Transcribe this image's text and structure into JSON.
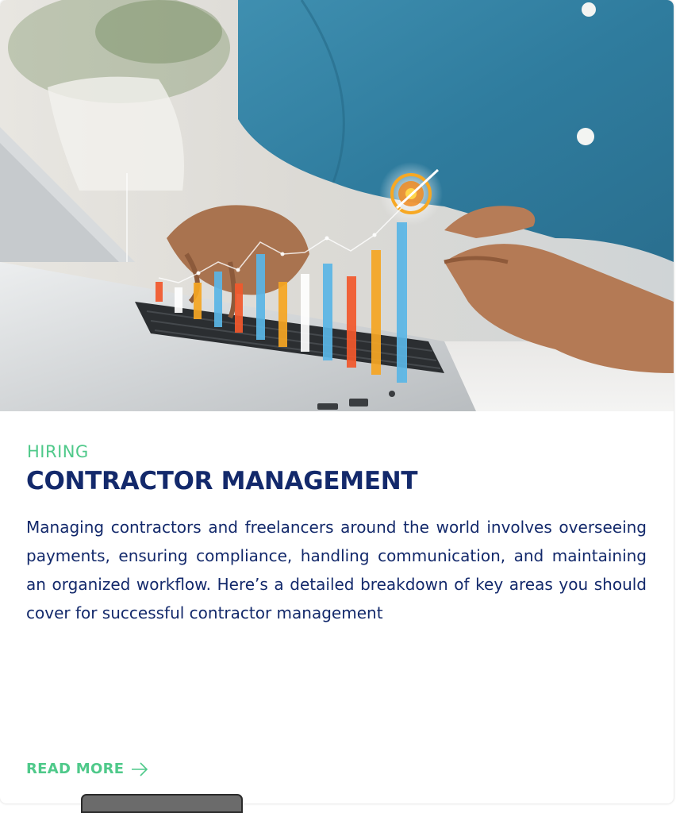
{
  "post": {
    "category": "HIRING",
    "title": "CONTRACTOR MANAGEMENT",
    "excerpt": "Managing contractors and freelancers around the world involves overseeing payments, ensuring compliance, handling communication, and maintaining an organized workflow. Here’s a detailed breakdown of key areas you should cover for successful contractor management",
    "read_more_label": "READ MORE",
    "read_more_icon": "arrow-right-icon",
    "image_icon": "laptop-analytics-photo"
  },
  "colors": {
    "accent_green": "#4fc98a",
    "title_navy": "#13296b",
    "background": "#ffffff"
  }
}
